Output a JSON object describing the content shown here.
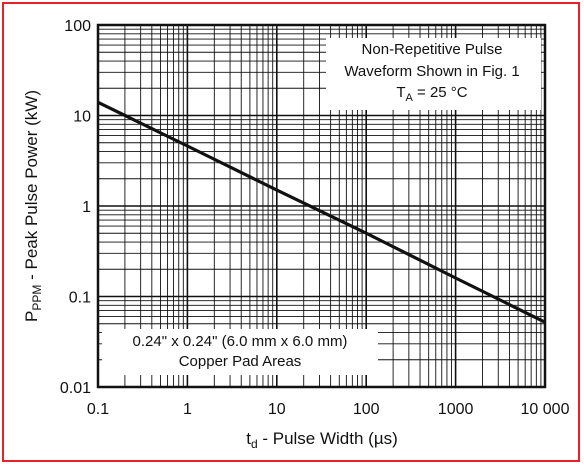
{
  "chart_data": {
    "type": "line",
    "x_scale": "log",
    "y_scale": "log",
    "xlim": [
      0.1,
      10000
    ],
    "ylim": [
      0.01,
      100
    ],
    "x_tick_labels": [
      "0.1",
      "1",
      "10",
      "100",
      "1000",
      "10 000"
    ],
    "y_tick_labels": [
      "0.01",
      "0.1",
      "1",
      "10",
      "100"
    ],
    "xlabel_main": "t",
    "xlabel_sub": "d",
    "xlabel_rest": " - Pulse Width (µs)",
    "ylabel_main": "P",
    "ylabel_sub": "PPM",
    "ylabel_rest": " - Peak Pulse Power (kW)",
    "grid": true,
    "series": [
      {
        "x": [
          0.1,
          1,
          10,
          100,
          1000,
          10000
        ],
        "y": [
          14,
          4.6,
          1.5,
          0.5,
          0.16,
          0.052
        ]
      }
    ],
    "annotations": {
      "top_right": {
        "line1": "Non-Repetitive Pulse",
        "line2": "Waveform Shown in Fig. 1",
        "line3_main": "T",
        "line3_sub": "A",
        "line3_rest": " = 25 °C"
      },
      "bottom_left": {
        "line1": "0.24\" x 0.24\" (6.0 mm x 6.0 mm)",
        "line2": "Copper Pad Areas"
      }
    }
  },
  "colors": {
    "frame": "#e8202a",
    "ink": "#111111"
  }
}
